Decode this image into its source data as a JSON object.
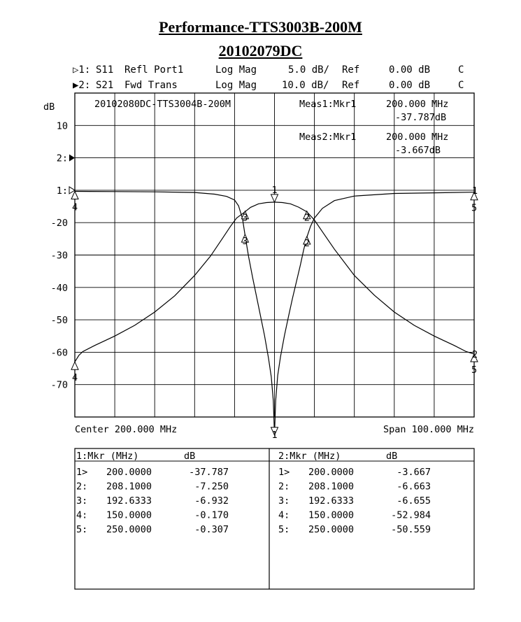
{
  "header": {
    "title_line1": "Performance-TTS3003B-200M",
    "title_line2": "20102079DC"
  },
  "channels": [
    {
      "marker": "▷1:",
      "param": "S11",
      "desc": "Refl Port1",
      "format": "Log Mag",
      "scale": "5.0 dB/",
      "ref_label": "Ref",
      "ref": "0.00 dB",
      "flag": "C"
    },
    {
      "marker": "▶2:",
      "param": "S21",
      "desc": "Fwd Trans",
      "format": "Log Mag",
      "scale": "10.0 dB/",
      "ref_label": "Ref",
      "ref": "0.00 dB",
      "flag": "C"
    }
  ],
  "chart_data": {
    "type": "line",
    "title": "20102080DC-TTS3004B-200M",
    "ylabel": "dB",
    "ytick_labels": [
      "10",
      "2:",
      "1:",
      "-20",
      "-30",
      "-40",
      "-50",
      "-60",
      "-70"
    ],
    "center_label": "Center 200.000 MHz",
    "span_label": "Span 100.000 MHz",
    "xlim": [
      150,
      250
    ],
    "grid": true,
    "measurements": [
      {
        "label": "Meas1:Mkr1",
        "freq": "200.000 MHz",
        "value": "-37.787dB"
      },
      {
        "label": "Meas2:Mkr1",
        "freq": "200.000 MHz",
        "value": "-3.667dB"
      }
    ],
    "series": [
      {
        "name": "S11",
        "scale_db_per_div": 5,
        "ref_db": 0,
        "x": [
          150,
          160,
          170,
          180,
          185,
          188,
          190,
          191,
          192,
          192.6333,
          193.5,
          194.5,
          195.5,
          196.5,
          197.5,
          198.5,
          199.2,
          199.7,
          200,
          200.3,
          200.8,
          201.5,
          202.5,
          203.5,
          204.5,
          205.5,
          206.5,
          207.3,
          208.1,
          209,
          210,
          212,
          215,
          220,
          230,
          240,
          250
        ],
        "y": [
          -0.17,
          -0.2,
          -0.25,
          -0.35,
          -0.6,
          -0.95,
          -1.5,
          -2.4,
          -4.4,
          -6.932,
          -10.2,
          -13.4,
          -16.4,
          -19.4,
          -22.4,
          -25.9,
          -28.8,
          -32.5,
          -37.787,
          -32.5,
          -28.6,
          -25.7,
          -22.4,
          -19.5,
          -16.7,
          -14.1,
          -11.5,
          -9.2,
          -7.25,
          -5.6,
          -4.3,
          -2.8,
          -1.6,
          -0.9,
          -0.5,
          -0.4,
          -0.307
        ]
      },
      {
        "name": "S21",
        "scale_db_per_div": 10,
        "ref_db": 0,
        "x": [
          150,
          151,
          152,
          155,
          160,
          165,
          170,
          175,
          180,
          184,
          187,
          189,
          190.5,
          192.6333,
          194,
          196,
          198,
          200,
          202,
          204,
          206,
          208.1,
          210,
          212,
          215,
          220,
          225,
          230,
          235,
          240,
          245,
          248,
          250
        ],
        "y": [
          -52.984,
          -51.0,
          -49.8,
          -47.9,
          -45.0,
          -41.7,
          -37.6,
          -32.6,
          -26.3,
          -20.3,
          -14.8,
          -11.1,
          -8.6,
          -6.655,
          -5.3,
          -4.2,
          -3.8,
          -3.667,
          -3.8,
          -4.2,
          -5.2,
          -6.663,
          -9.2,
          -12.8,
          -18.2,
          -26.3,
          -32.4,
          -37.6,
          -41.7,
          -45.0,
          -47.9,
          -49.8,
          -50.559
        ]
      }
    ],
    "markers": [
      {
        "id": "1",
        "freq": 200.0,
        "s11": -37.787,
        "s21": -3.667
      },
      {
        "id": "2",
        "freq": 208.1,
        "s11": -7.25,
        "s21": -6.663
      },
      {
        "id": "3",
        "freq": 192.6333,
        "s11": -6.932,
        "s21": -6.655
      },
      {
        "id": "4",
        "freq": 150.0,
        "s11": -0.17,
        "s21": -52.984
      },
      {
        "id": "5",
        "freq": 250.0,
        "s11": -0.307,
        "s21": -50.559
      }
    ]
  },
  "marker_tables": [
    {
      "header_label": "1:Mkr (MHz)",
      "header_unit": "dB",
      "rows": [
        {
          "id": "1>",
          "freq": "200.0000",
          "value": "-37.787"
        },
        {
          "id": "2:",
          "freq": "208.1000",
          "value": "-7.250"
        },
        {
          "id": "3:",
          "freq": "192.6333",
          "value": "-6.932"
        },
        {
          "id": "4:",
          "freq": "150.0000",
          "value": "-0.170"
        },
        {
          "id": "5:",
          "freq": "250.0000",
          "value": "-0.307"
        }
      ]
    },
    {
      "header_label": "2:Mkr (MHz)",
      "header_unit": "dB",
      "rows": [
        {
          "id": "1>",
          "freq": "200.0000",
          "value": "-3.667"
        },
        {
          "id": "2:",
          "freq": "208.1000",
          "value": "-6.663"
        },
        {
          "id": "3:",
          "freq": "192.6333",
          "value": "-6.655"
        },
        {
          "id": "4:",
          "freq": "150.0000",
          "value": "-52.984"
        },
        {
          "id": "5:",
          "freq": "250.0000",
          "value": "-50.559"
        }
      ]
    }
  ]
}
